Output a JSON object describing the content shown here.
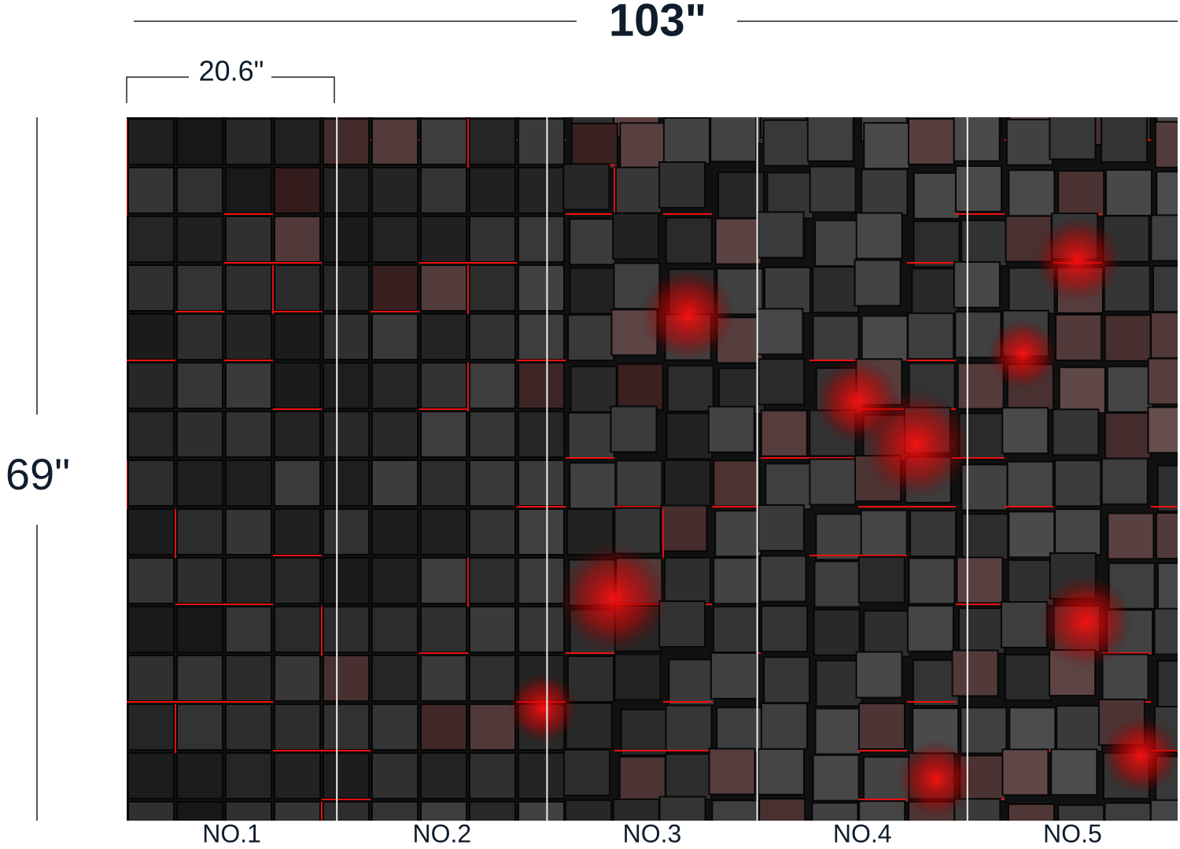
{
  "dimensions": {
    "total_width": "103\"",
    "panel_width": "20.6\"",
    "height": "69\""
  },
  "panels": [
    {
      "label": "NO.1"
    },
    {
      "label": "NO.2"
    },
    {
      "label": "NO.3"
    },
    {
      "label": "NO.4"
    },
    {
      "label": "NO.5"
    }
  ]
}
